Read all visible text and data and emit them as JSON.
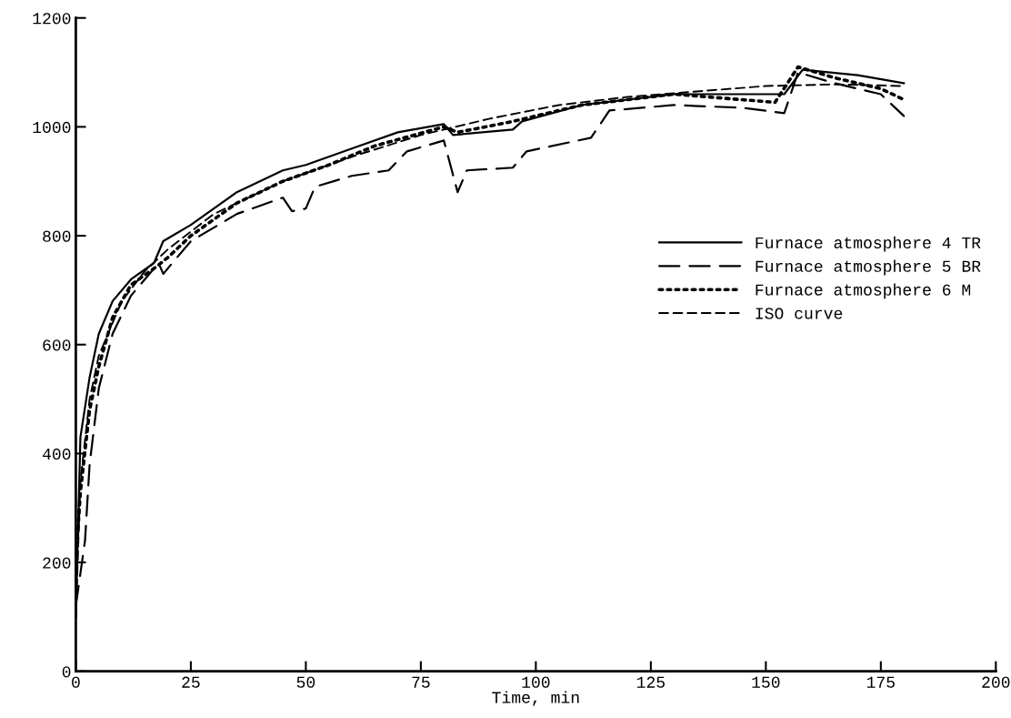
{
  "chart_data": {
    "type": "line",
    "xlabel": "Time, min",
    "xlim": [
      0,
      200
    ],
    "xticks": [
      0,
      25,
      50,
      75,
      100,
      125,
      150,
      175,
      200
    ],
    "ylim": [
      0,
      1200
    ],
    "yticks": [
      0,
      200,
      400,
      600,
      800,
      1000,
      1200
    ],
    "grid": false,
    "legend": "right",
    "marker": "none",
    "series": [
      {
        "name": "Furnace atmosphere 4 TR",
        "color": "#000000",
        "line_style": "solid",
        "x": [
          0,
          1,
          3,
          5,
          8,
          12,
          17,
          19,
          25,
          35,
          45,
          50,
          60,
          70,
          80,
          82,
          95,
          97,
          110,
          130,
          154,
          158,
          170,
          180
        ],
        "values": [
          100,
          430,
          540,
          620,
          680,
          720,
          750,
          790,
          820,
          880,
          920,
          930,
          960,
          990,
          1005,
          985,
          995,
          1010,
          1040,
          1060,
          1060,
          1105,
          1095,
          1080
        ]
      },
      {
        "name": "Furnace atmosphere 5 BR",
        "color": "#000000",
        "line_style": "longdash",
        "x": [
          0,
          2,
          3,
          5,
          8,
          12,
          18,
          19,
          25,
          35,
          45,
          47,
          50,
          52,
          60,
          68,
          72,
          80,
          83,
          85,
          95,
          98,
          112,
          116,
          130,
          145,
          154,
          157,
          165,
          175,
          180
        ],
        "values": [
          120,
          240,
          380,
          520,
          620,
          690,
          750,
          730,
          790,
          840,
          870,
          845,
          850,
          890,
          910,
          920,
          955,
          975,
          880,
          920,
          925,
          955,
          980,
          1030,
          1040,
          1035,
          1025,
          1100,
          1080,
          1060,
          1020
        ]
      },
      {
        "name": "Furnace atmosphere 6 M",
        "color": "#000000",
        "line_style": "dotted",
        "x": [
          0,
          1,
          3,
          5,
          8,
          12,
          17,
          20,
          25,
          35,
          45,
          55,
          65,
          80,
          83,
          95,
          110,
          130,
          152,
          157,
          165,
          175,
          180
        ],
        "values": [
          200,
          330,
          480,
          560,
          650,
          710,
          740,
          760,
          800,
          860,
          900,
          930,
          965,
          1000,
          990,
          1010,
          1040,
          1060,
          1045,
          1110,
          1090,
          1070,
          1050
        ]
      },
      {
        "name": "ISO curve",
        "color": "#000000",
        "line_style": "dashed",
        "x": [
          0,
          1,
          3,
          5,
          10,
          15,
          20,
          30,
          45,
          60,
          75,
          90,
          105,
          120,
          135,
          150,
          165,
          180
        ],
        "values": [
          100,
          350,
          500,
          580,
          680,
          735,
          775,
          840,
          900,
          945,
          985,
          1015,
          1040,
          1055,
          1065,
          1075,
          1078,
          1075
        ]
      }
    ]
  }
}
